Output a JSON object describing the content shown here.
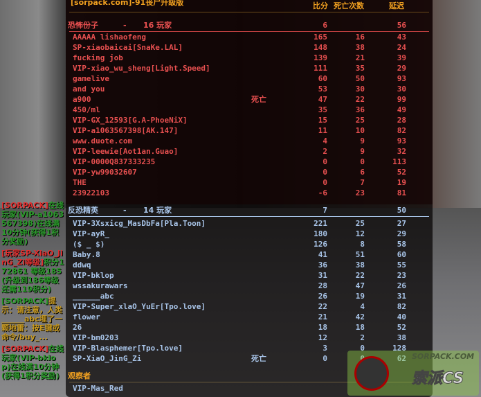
{
  "scoreboard": {
    "title": "[sorpack.com]-91丧尸升级版",
    "headers": {
      "score": "比分",
      "deaths": "死亡次数",
      "ping": "延迟"
    },
    "terrorists": {
      "label": "恐怖份子",
      "sep": "-",
      "count": "16 玩家",
      "score": "6",
      "ping": "56",
      "color": "#e85050",
      "players": [
        {
          "name": "AAAAA lishaofeng",
          "status": "",
          "score": "165",
          "deaths": "16",
          "ping": "43"
        },
        {
          "name": "SP-xiaobaicai[SnaKe.LAL]",
          "status": "",
          "score": "148",
          "deaths": "38",
          "ping": "24"
        },
        {
          "name": "fucking job",
          "status": "",
          "score": "139",
          "deaths": "21",
          "ping": "39"
        },
        {
          "name": "VIP-xiao_wu_sheng[Light.Speed]",
          "status": "",
          "score": "111",
          "deaths": "35",
          "ping": "29"
        },
        {
          "name": "gamelive",
          "status": "",
          "score": "60",
          "deaths": "50",
          "ping": "93"
        },
        {
          "name": "and      you",
          "status": "",
          "score": "53",
          "deaths": "30",
          "ping": "30"
        },
        {
          "name": "a900",
          "status": "死亡",
          "score": "47",
          "deaths": "22",
          "ping": "99"
        },
        {
          "name": "450/ml",
          "status": "",
          "score": "35",
          "deaths": "36",
          "ping": "49"
        },
        {
          "name": "VIP-GX_12593[G.A-PhoeNiX]",
          "status": "",
          "score": "15",
          "deaths": "25",
          "ping": "28"
        },
        {
          "name": "VIP-a1063567398[AK.147]",
          "status": "",
          "score": "11",
          "deaths": "10",
          "ping": "82"
        },
        {
          "name": "www.duote.com",
          "status": "",
          "score": "4",
          "deaths": "9",
          "ping": "93"
        },
        {
          "name": "VIP-leewie[Aot1an.Guao]",
          "status": "",
          "score": "2",
          "deaths": "9",
          "ping": "32"
        },
        {
          "name": "VIP-0000Q837333235",
          "status": "",
          "score": "0",
          "deaths": "0",
          "ping": "113"
        },
        {
          "name": "VIP-yw99032607",
          "status": "",
          "score": "0",
          "deaths": "6",
          "ping": "52"
        },
        {
          "name": "THE",
          "status": "",
          "score": "0",
          "deaths": "7",
          "ping": "19"
        },
        {
          "name": "23922103",
          "status": "",
          "score": "-6",
          "deaths": "23",
          "ping": "81"
        }
      ]
    },
    "counter_terrorists": {
      "label": "反恐精英",
      "sep": "-",
      "count": "14 玩家",
      "score": "7",
      "ping": "50",
      "color": "#a8c4e8",
      "players": [
        {
          "name": "VIP-3Xsxicg_MasDbFa[Pla.Toon]",
          "status": "",
          "score": "221",
          "deaths": "25",
          "ping": "27"
        },
        {
          "name": "VIP-ayR_",
          "status": "",
          "score": "180",
          "deaths": "12",
          "ping": "29"
        },
        {
          "name": "($ _ $)",
          "status": "",
          "score": "126",
          "deaths": "8",
          "ping": "58"
        },
        {
          "name": "Baby.8",
          "status": "",
          "score": "41",
          "deaths": "51",
          "ping": "60"
        },
        {
          "name": "ddwq",
          "status": "",
          "score": "36",
          "deaths": "38",
          "ping": "55"
        },
        {
          "name": "VIP-bklop",
          "status": "",
          "score": "31",
          "deaths": "22",
          "ping": "23"
        },
        {
          "name": "wssakurawars",
          "status": "",
          "score": "28",
          "deaths": "47",
          "ping": "26"
        },
        {
          "name": "______abc",
          "status": "",
          "score": "26",
          "deaths": "19",
          "ping": "31"
        },
        {
          "name": "VIP-Super_xlaO_YuEr[Tpo.love]",
          "status": "",
          "score": "22",
          "deaths": "4",
          "ping": "82"
        },
        {
          "name": "flower",
          "status": "",
          "score": "21",
          "deaths": "42",
          "ping": "40"
        },
        {
          "name": "26",
          "status": "",
          "score": "18",
          "deaths": "18",
          "ping": "52"
        },
        {
          "name": "VIP-bm0203",
          "status": "",
          "score": "12",
          "deaths": "2",
          "ping": "38"
        },
        {
          "name": "VIP-Blasphemer[Tpo.love]",
          "status": "",
          "score": "3",
          "deaths": "0",
          "ping": "128"
        },
        {
          "name": "SP-XiaO_JinG_Zi",
          "status": "死亡",
          "score": "0",
          "deaths": "0",
          "ping": "62"
        }
      ]
    },
    "spectators": {
      "label": "观察者",
      "players": [
        "VIP-Mas_Red"
      ]
    }
  },
  "chat": [
    {
      "tag": "[SORPACK]",
      "text": "在线玩家(VIP-a1063567398)在线满10分钟(获得1积分奖励)",
      "tag_color": "#e03030",
      "text_color": "#2a9a2a"
    },
    {
      "tag": "[玩家SP-XiaO_JinG_Zi等级]",
      "text": "积分172861 等级185 (升级到186等级还需119积分)",
      "tag_color": "#e03030",
      "text_color": "#2a9a2a"
    },
    {
      "tag": "[SORPACK]",
      "text": "提示：请注意，人类______abc埋了一颗地雷：按E键或命令/buy_...",
      "tag_color": "#2a9a2a",
      "text_color": "#c89a20"
    },
    {
      "tag": "[SORPACK]",
      "text": "在线玩家(VIP-bklop)在线满10分钟(获得1积分奖励)",
      "tag_color": "#e03030",
      "text_color": "#2a9a2a"
    }
  ],
  "watermark": {
    "site": "SORPACK.COM",
    "brand": "索派CS"
  },
  "colors": {
    "header": "#f0a020",
    "terrorist": "#e85050",
    "counter_terrorist": "#a8c4e8"
  }
}
